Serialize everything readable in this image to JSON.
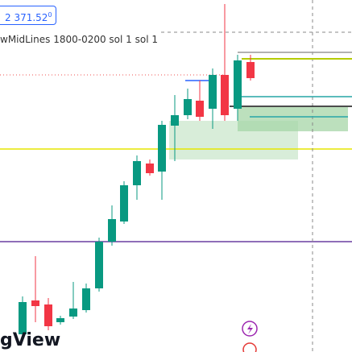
{
  "price_label": {
    "main": "2 371.52",
    "small": "0"
  },
  "indicator": "wMidLines 1800-0200 sol 1 sol 1",
  "watermark": "gView"
}
